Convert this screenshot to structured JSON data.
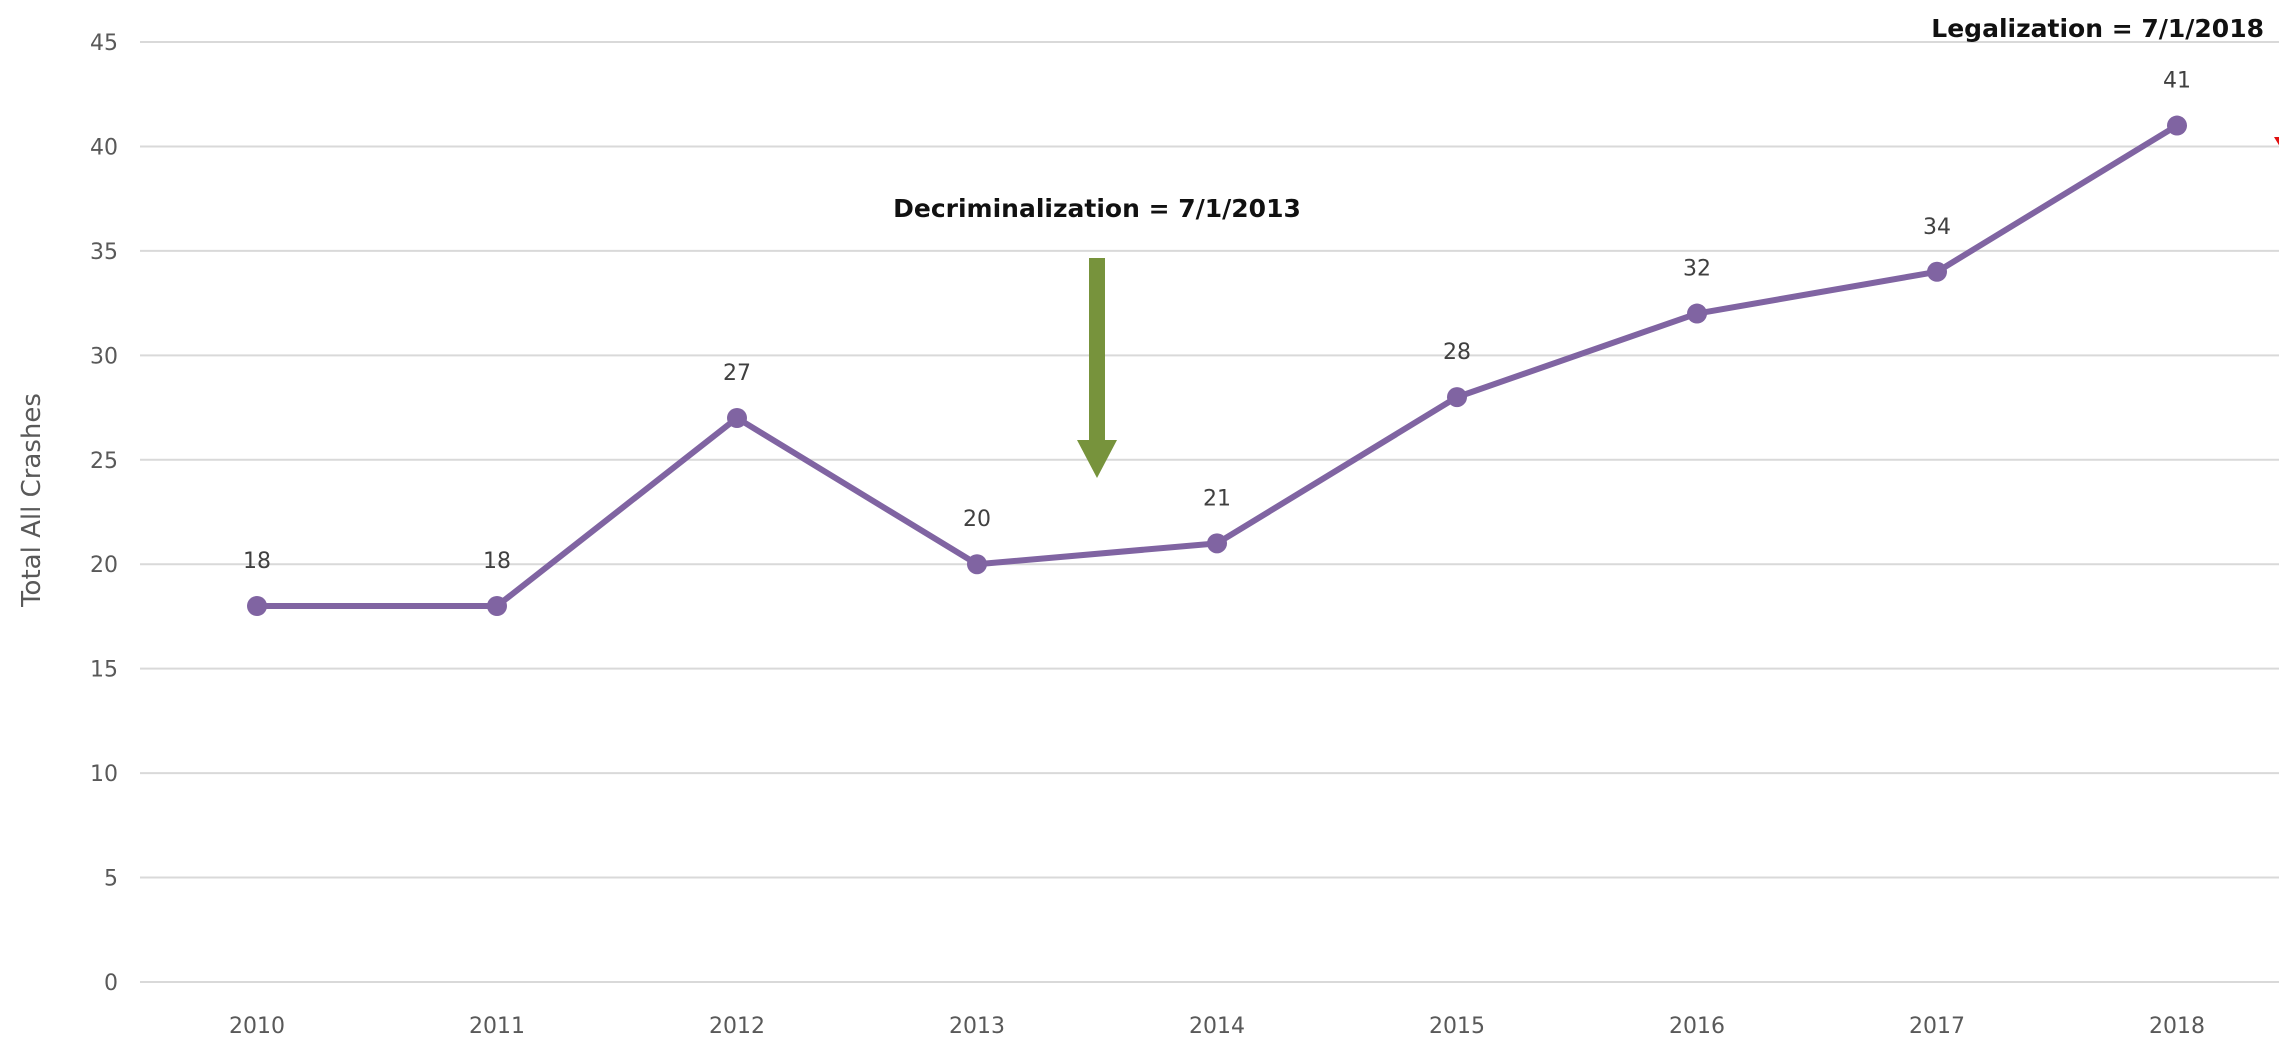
{
  "chart_data": {
    "type": "line",
    "title": "",
    "xlabel": "",
    "ylabel": "Total All Crashes",
    "categories": [
      "2010",
      "2011",
      "2012",
      "2013",
      "2014",
      "2015",
      "2016",
      "2017",
      "2018"
    ],
    "series": [
      {
        "values": [
          18,
          18,
          27,
          20,
          21,
          28,
          32,
          34,
          41
        ],
        "color": "#8064A2"
      }
    ],
    "data_labels": [
      "18",
      "18",
      "27",
      "20",
      "21",
      "28",
      "32",
      "34",
      "41"
    ],
    "ylim": [
      0,
      45
    ],
    "yticks": [
      "0",
      "5",
      "10",
      "15",
      "20",
      "25",
      "30",
      "35",
      "40",
      "45"
    ],
    "grid": true,
    "legend": "none",
    "annotations": [
      {
        "text": "Decriminalization = 7/1/2013",
        "x": 2013.5,
        "arrow_color": "#77933C",
        "direction": "down"
      },
      {
        "text": "Legalization = 7/1/2018",
        "x": 2018.5,
        "arrow_color": "#E01010",
        "direction": "down"
      }
    ]
  }
}
